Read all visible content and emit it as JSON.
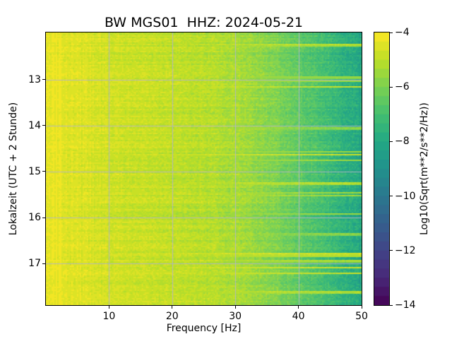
{
  "chart_data": {
    "type": "heatmap",
    "subtype": "seismic-spectrogram",
    "title": "BW MGS01  HHZ: 2024-05-21",
    "xlabel": "Frequency [Hz]",
    "ylabel": "Lokalzeit (UTC + 2 Stunde)",
    "x_axis": {
      "range_hz": [
        0,
        50
      ],
      "ticks": [
        10,
        20,
        30,
        40,
        50
      ],
      "tick_labels": [
        "10",
        "20",
        "30",
        "40",
        "50"
      ]
    },
    "y_axis": {
      "range_hours": [
        11.98,
        17.9
      ],
      "ticks": [
        13,
        14,
        15,
        16,
        17
      ],
      "tick_labels": [
        "13",
        "14",
        "15",
        "16",
        "17"
      ]
    },
    "grid": true,
    "grid_color": "rgba(178,181,198,0.9)",
    "colorbar": {
      "label": "Log10(Sqrt(m**2/s**2/Hz))",
      "range": [
        -14,
        -4
      ],
      "ticks": [
        -4,
        -6,
        -8,
        -10,
        -12,
        -14
      ],
      "tick_labels": [
        "−4",
        "−6",
        "−8",
        "−10",
        "−12",
        "−14"
      ],
      "levels": 30,
      "colormap": "viridis",
      "colormap_stops": [
        [
          0.0,
          "#440154"
        ],
        [
          0.1,
          "#482878"
        ],
        [
          0.2,
          "#414487"
        ],
        [
          0.3,
          "#355f8d"
        ],
        [
          0.4,
          "#2a788e"
        ],
        [
          0.5,
          "#21918c"
        ],
        [
          0.6,
          "#22a884"
        ],
        [
          0.7,
          "#44bf70"
        ],
        [
          0.8,
          "#7ad151"
        ],
        [
          0.9,
          "#bddf26"
        ],
        [
          1.0,
          "#fde725"
        ]
      ]
    },
    "frequency_profile": {
      "hz": [
        0,
        1,
        3,
        5,
        8,
        10,
        14,
        18,
        22,
        26,
        30,
        33,
        36,
        40,
        44,
        47,
        50
      ],
      "log10_value": [
        -4.15,
        -4.2,
        -4.35,
        -4.5,
        -4.62,
        -4.7,
        -4.82,
        -4.9,
        -5.0,
        -5.12,
        -5.35,
        -5.6,
        -5.95,
        -6.5,
        -7.1,
        -7.6,
        -8.15
      ]
    },
    "noise": {
      "seed": 20240521,
      "rows": 193,
      "cols": 224,
      "row_jitter": 0.45,
      "column_jitter": 0.28,
      "low_freq_column_jitter": 0.5,
      "cell_jitter_base": 0.35,
      "cell_jitter_highfreq": 0.5,
      "streak_count": 20
    }
  }
}
